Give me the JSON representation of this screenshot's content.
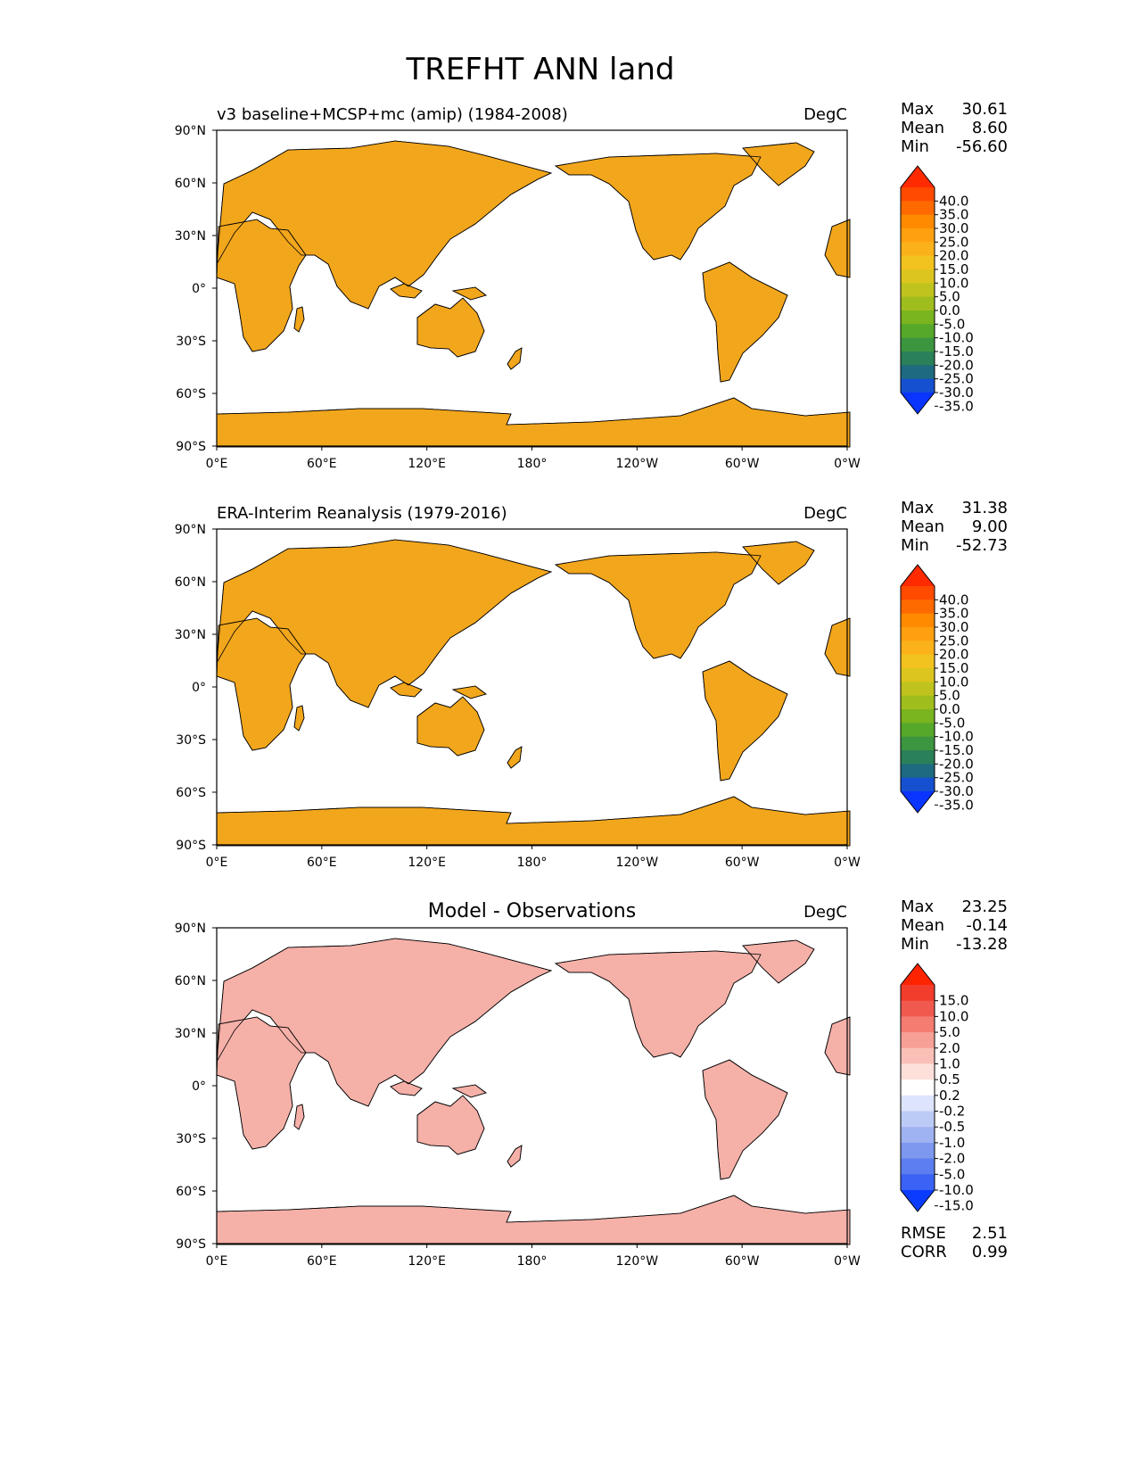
{
  "title": "TREFHT ANN land",
  "lat_ticks": [
    "90°N",
    "60°N",
    "30°N",
    "0°",
    "30°S",
    "60°S",
    "90°S"
  ],
  "lon_ticks": [
    "0°E",
    "60°E",
    "120°E",
    "180°",
    "120°W",
    "60°W",
    "0°W"
  ],
  "stat_labels": {
    "max": "Max",
    "mean": "Mean",
    "min": "Min",
    "rmse": "RMSE",
    "corr": "CORR"
  },
  "chart_data": [
    {
      "type": "heatmap",
      "title_left": "v3 baseline+MCSP+mc (amip) (1984-2008)",
      "title_center": "",
      "units": "DegC",
      "stats": {
        "max": "30.61",
        "mean": "8.60",
        "min": "-56.60"
      },
      "xlim": [
        0,
        360
      ],
      "ylim": [
        -90,
        90
      ],
      "colorbar": {
        "levels": [
          "40.0",
          "35.0",
          "30.0",
          "25.0",
          "20.0",
          "15.0",
          "10.0",
          "5.0",
          "0.0",
          "-5.0",
          "-10.0",
          "-15.0",
          "-20.0",
          "-25.0",
          "-30.0",
          "-35.0"
        ],
        "colors": [
          "#ff2a00",
          "#ff4a00",
          "#ff6a00",
          "#ff8a00",
          "#ffa010",
          "#fbb21a",
          "#f2c21e",
          "#dcc51e",
          "#c0c31e",
          "#9fbe1e",
          "#7ab41e",
          "#56a82a",
          "#3c9640",
          "#2a8058",
          "#1e6a80",
          "#1450d0",
          "#0a34ff"
        ]
      }
    },
    {
      "type": "heatmap",
      "title_left": "ERA-Interim Reanalysis (1979-2016)",
      "title_center": "",
      "units": "DegC",
      "stats": {
        "max": "31.38",
        "mean": "9.00",
        "min": "-52.73"
      },
      "xlim": [
        0,
        360
      ],
      "ylim": [
        -90,
        90
      ],
      "colorbar": {
        "levels": [
          "40.0",
          "35.0",
          "30.0",
          "25.0",
          "20.0",
          "15.0",
          "10.0",
          "5.0",
          "0.0",
          "-5.0",
          "-10.0",
          "-15.0",
          "-20.0",
          "-25.0",
          "-30.0",
          "-35.0"
        ],
        "colors": [
          "#ff2a00",
          "#ff4a00",
          "#ff6a00",
          "#ff8a00",
          "#ffa010",
          "#fbb21a",
          "#f2c21e",
          "#dcc51e",
          "#c0c31e",
          "#9fbe1e",
          "#7ab41e",
          "#56a82a",
          "#3c9640",
          "#2a8058",
          "#1e6a80",
          "#1450d0",
          "#0a34ff"
        ]
      }
    },
    {
      "type": "heatmap",
      "title_left": "",
      "title_center": "Model - Observations",
      "units": "DegC",
      "stats": {
        "max": "23.25",
        "mean": "-0.14",
        "min": "-13.28"
      },
      "rmse": "2.51",
      "corr": "0.99",
      "xlim": [
        0,
        360
      ],
      "ylim": [
        -90,
        90
      ],
      "colorbar": {
        "levels": [
          "15.0",
          "10.0",
          "5.0",
          "2.0",
          "1.0",
          "0.5",
          "0.2",
          "-0.2",
          "-0.5",
          "-1.0",
          "-2.0",
          "-5.0",
          "-10.0",
          "-15.0"
        ],
        "colors": [
          "#ff2400",
          "#f23c2c",
          "#f05a4e",
          "#f47c70",
          "#f7a096",
          "#fac0b8",
          "#fde0da",
          "#ffffff",
          "#dde4fb",
          "#bccbf6",
          "#9fb3f2",
          "#7d98ee",
          "#5c7ef0",
          "#3a62f4",
          "#0a3cff"
        ]
      }
    }
  ]
}
